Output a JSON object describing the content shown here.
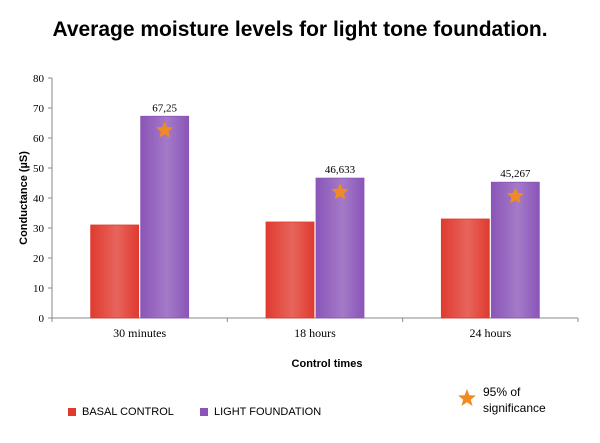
{
  "chart_data": {
    "type": "bar",
    "title": "Average moisture levels for light tone foundation.",
    "xlabel": "Control times",
    "ylabel": "Conductance (µS)",
    "ylim": [
      0,
      80
    ],
    "yticks": [
      0,
      10,
      20,
      30,
      40,
      50,
      60,
      70,
      80
    ],
    "categories": [
      "30 minutes",
      "18 hours",
      "24 hours"
    ],
    "series": [
      {
        "name": "BASAL CONTROL",
        "values": [
          31,
          32,
          33
        ],
        "color": "#e03a2f"
      },
      {
        "name": "LIGHT FOUNDATION",
        "values": [
          67.25,
          46.633,
          45.267
        ],
        "color": "#8a55b8"
      }
    ],
    "data_labels": [
      "67,25",
      "46,633",
      "45,267"
    ],
    "significance_markers": [
      {
        "category": "30 minutes",
        "series": "LIGHT FOUNDATION"
      },
      {
        "category": "18 hours",
        "series": "LIGHT FOUNDATION"
      },
      {
        "category": "24 hours",
        "series": "LIGHT FOUNDATION"
      }
    ],
    "significance_color": "#f08a24",
    "grid": false,
    "legend_placement": "bottom-left"
  },
  "legend": {
    "basal_label": "BASAL CONTROL",
    "light_label": "LIGHT FOUNDATION",
    "basal_color": "#e03a2f",
    "light_color": "#8a55b8"
  },
  "significance_note": {
    "line1": "95% of",
    "line2": "significance",
    "icon": "star-icon"
  }
}
